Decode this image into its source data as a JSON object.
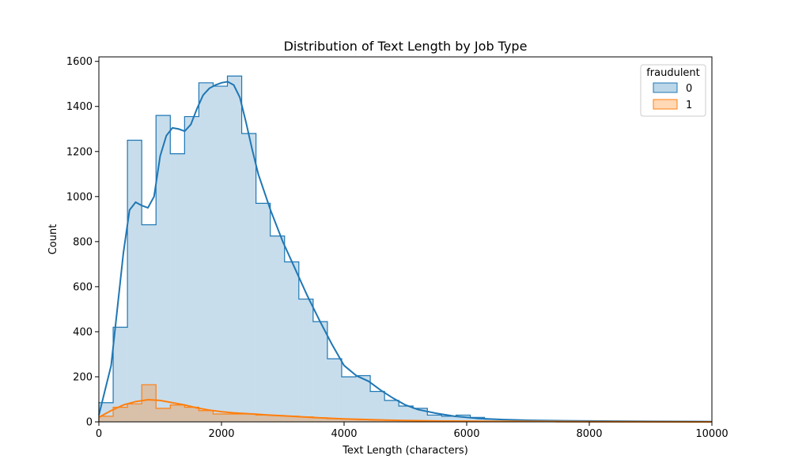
{
  "chart_data": {
    "type": "bar",
    "title": "Distribution of Text Length by Job Type",
    "xlabel": "Text Length (characters)",
    "ylabel": "Count",
    "xlim": [
      0,
      10000
    ],
    "ylim": [
      0,
      1620
    ],
    "xticks": [
      0,
      2000,
      4000,
      6000,
      8000,
      10000
    ],
    "yticks": [
      0,
      200,
      400,
      600,
      800,
      1000,
      1200,
      1400,
      1600
    ],
    "grid": false,
    "legend": {
      "title": "fraudulent",
      "placement": "top-right"
    },
    "bin_width": 233,
    "series": [
      {
        "name": "0",
        "color": "#1f77b4",
        "counts": [
          85,
          420,
          1250,
          875,
          1360,
          1190,
          1355,
          1505,
          1490,
          1535,
          1280,
          970,
          825,
          710,
          545,
          445,
          280,
          200,
          205,
          135,
          95,
          70,
          60,
          30,
          25,
          30,
          20,
          12,
          10,
          8,
          6,
          5,
          4,
          3,
          4,
          2,
          2,
          2,
          1,
          1,
          1,
          1,
          0
        ],
        "kde": [
          [
            0,
            30
          ],
          [
            200,
            250
          ],
          [
            400,
            750
          ],
          [
            500,
            940
          ],
          [
            600,
            975
          ],
          [
            700,
            960
          ],
          [
            800,
            950
          ],
          [
            900,
            1000
          ],
          [
            1000,
            1180
          ],
          [
            1100,
            1270
          ],
          [
            1200,
            1305
          ],
          [
            1300,
            1300
          ],
          [
            1400,
            1290
          ],
          [
            1500,
            1320
          ],
          [
            1600,
            1390
          ],
          [
            1700,
            1450
          ],
          [
            1800,
            1480
          ],
          [
            1900,
            1495
          ],
          [
            2000,
            1505
          ],
          [
            2100,
            1510
          ],
          [
            2200,
            1495
          ],
          [
            2300,
            1440
          ],
          [
            2400,
            1330
          ],
          [
            2500,
            1210
          ],
          [
            2600,
            1100
          ],
          [
            2800,
            940
          ],
          [
            3000,
            800
          ],
          [
            3200,
            680
          ],
          [
            3400,
            560
          ],
          [
            3600,
            450
          ],
          [
            3800,
            345
          ],
          [
            4000,
            250
          ],
          [
            4200,
            205
          ],
          [
            4400,
            180
          ],
          [
            4600,
            140
          ],
          [
            4800,
            105
          ],
          [
            5000,
            75
          ],
          [
            5200,
            55
          ],
          [
            5500,
            38
          ],
          [
            5800,
            25
          ],
          [
            6200,
            15
          ],
          [
            6600,
            10
          ],
          [
            7000,
            7
          ],
          [
            7600,
            5
          ],
          [
            8000,
            4
          ],
          [
            9000,
            2
          ],
          [
            10000,
            1
          ]
        ]
      },
      {
        "name": "1",
        "color": "#ff7f0e",
        "counts": [
          25,
          65,
          80,
          165,
          60,
          75,
          65,
          50,
          35,
          35,
          35,
          30,
          28,
          25,
          22,
          18,
          14,
          12,
          10,
          8,
          7,
          6,
          5,
          4,
          3,
          2,
          2,
          2,
          1,
          1,
          1,
          1,
          0,
          0,
          0,
          0,
          0,
          0,
          0,
          0,
          0,
          0,
          0
        ],
        "kde": [
          [
            0,
            20
          ],
          [
            200,
            50
          ],
          [
            400,
            75
          ],
          [
            600,
            90
          ],
          [
            800,
            98
          ],
          [
            1000,
            95
          ],
          [
            1200,
            85
          ],
          [
            1400,
            75
          ],
          [
            1600,
            62
          ],
          [
            1800,
            52
          ],
          [
            2000,
            45
          ],
          [
            2200,
            40
          ],
          [
            2500,
            35
          ],
          [
            2800,
            30
          ],
          [
            3200,
            24
          ],
          [
            3600,
            18
          ],
          [
            4000,
            13
          ],
          [
            4500,
            9
          ],
          [
            5000,
            6
          ],
          [
            5500,
            4
          ],
          [
            6000,
            3
          ],
          [
            7000,
            2
          ],
          [
            8000,
            1
          ],
          [
            10000,
            0
          ]
        ]
      }
    ]
  }
}
